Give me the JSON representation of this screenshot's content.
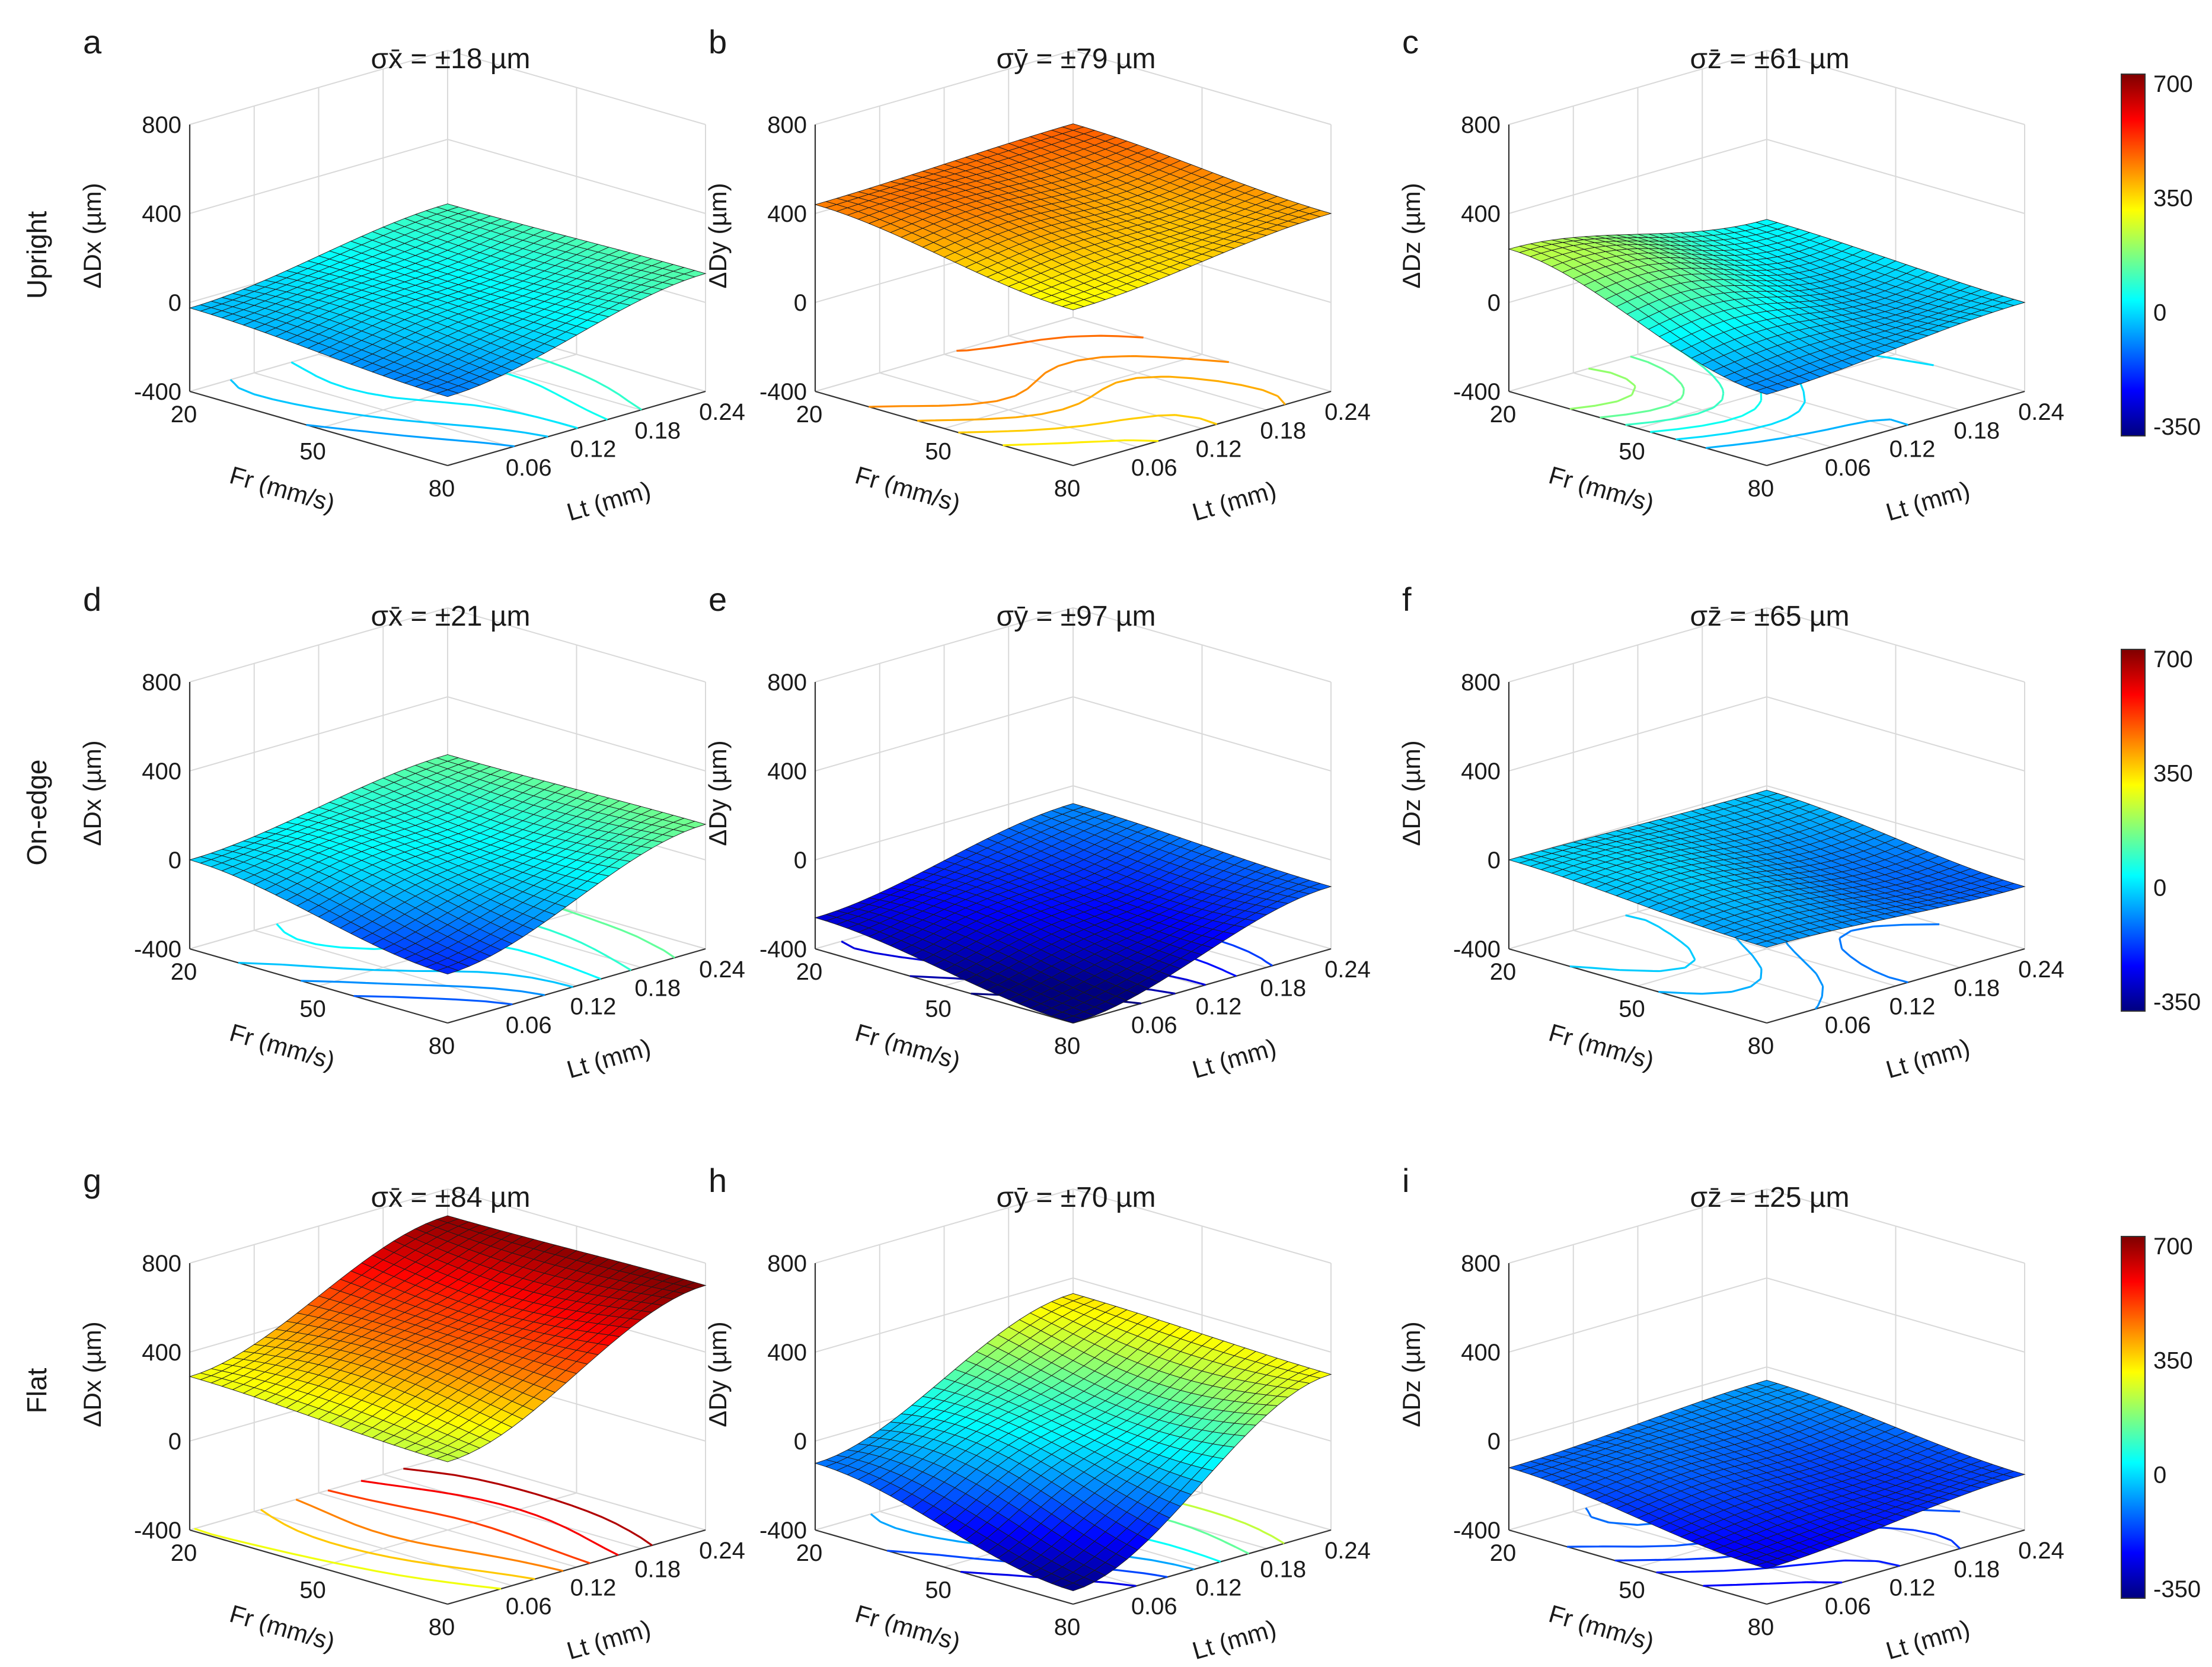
{
  "colormap": {
    "stops": [
      "#00007f",
      "#0000ff",
      "#007fff",
      "#00ffff",
      "#7fff7f",
      "#ffff00",
      "#ff7f00",
      "#ff0000",
      "#7f0000"
    ]
  },
  "row_labels": [
    "Upright",
    "On-edge",
    "Flat"
  ],
  "colorbars": [
    {
      "ticks": [
        "700",
        "350",
        "0",
        "-350"
      ]
    },
    {
      "ticks": [
        "700",
        "350",
        "0",
        "-350"
      ]
    },
    {
      "ticks": [
        "700",
        "350",
        "0",
        "-350"
      ]
    }
  ],
  "chart_data": [
    {
      "type": "surface",
      "panel": "a",
      "row": "Upright",
      "title": "σx̄ = ±18 µm",
      "xlabel": "Fr (mm/s)",
      "ylabel": "Lt (mm)",
      "zlabel": "ΔDx (µm)",
      "x_ticks": [
        "20",
        "50",
        "80"
      ],
      "y_ticks": [
        "0.06",
        "0.12",
        "0.18",
        "0.24"
      ],
      "z_ticks": [
        "-400",
        "0",
        "400",
        "800"
      ],
      "zlim": [
        -400,
        800
      ],
      "clim": [
        -350,
        700
      ],
      "corner_values": {
        "fr20_lt006": -25,
        "fr80_lt006": -90,
        "fr20_lt024": 110,
        "fr80_lt024": 130
      },
      "surface_range": [
        -90,
        170
      ]
    },
    {
      "type": "surface",
      "panel": "b",
      "row": "Upright",
      "title": "σȳ = ±79 µm",
      "xlabel": "Fr (mm/s)",
      "ylabel": "Lt (mm)",
      "zlabel": "ΔDy (µm)",
      "x_ticks": [
        "20",
        "50",
        "80"
      ],
      "y_ticks": [
        "0.06",
        "0.12",
        "0.18",
        "0.24"
      ],
      "z_ticks": [
        "-400",
        "0",
        "400",
        "800"
      ],
      "zlim": [
        -400,
        800
      ],
      "clim": [
        -350,
        700
      ],
      "corner_values": {
        "fr20_lt006": 440,
        "fr80_lt006": 300,
        "fr20_lt024": 470,
        "fr80_lt024": 400
      },
      "surface_range": [
        260,
        490
      ]
    },
    {
      "type": "surface",
      "panel": "c",
      "row": "Upright",
      "title": "σz̄ = ±61 µm",
      "xlabel": "Fr (mm/s)",
      "ylabel": "Lt (mm)",
      "zlabel": "ΔDz (µm)",
      "x_ticks": [
        "20",
        "50",
        "80"
      ],
      "y_ticks": [
        "0.06",
        "0.12",
        "0.18",
        "0.24"
      ],
      "z_ticks": [
        "-400",
        "0",
        "400",
        "800"
      ],
      "zlim": [
        -400,
        800
      ],
      "clim": [
        -350,
        700
      ],
      "corner_values": {
        "fr20_lt006": 240,
        "fr80_lt006": -80,
        "fr20_lt024": 40,
        "fr80_lt024": 0
      },
      "surface_range": [
        -80,
        240
      ]
    },
    {
      "type": "surface",
      "panel": "d",
      "row": "On-edge",
      "title": "σx̄ = ±21 µm",
      "xlabel": "Fr (mm/s)",
      "ylabel": "Lt (mm)",
      "zlabel": "ΔDx (µm)",
      "x_ticks": [
        "20",
        "50",
        "80"
      ],
      "y_ticks": [
        "0.06",
        "0.12",
        "0.18",
        "0.24"
      ],
      "z_ticks": [
        "-400",
        "0",
        "400",
        "800"
      ],
      "zlim": [
        -400,
        800
      ],
      "clim": [
        -350,
        700
      ],
      "corner_values": {
        "fr20_lt006": 0,
        "fr80_lt006": -180,
        "fr20_lt024": 140,
        "fr80_lt024": 160
      },
      "surface_range": [
        -180,
        200
      ]
    },
    {
      "type": "surface",
      "panel": "e",
      "row": "On-edge",
      "title": "σȳ = ±97 µm",
      "xlabel": "Fr (mm/s)",
      "ylabel": "Lt (mm)",
      "zlabel": "ΔDy (µm)",
      "x_ticks": [
        "20",
        "50",
        "80"
      ],
      "y_ticks": [
        "0.06",
        "0.12",
        "0.18",
        "0.24"
      ],
      "z_ticks": [
        "-400",
        "0",
        "400",
        "800"
      ],
      "zlim": [
        -400,
        800
      ],
      "clim": [
        -350,
        700
      ],
      "corner_values": {
        "fr20_lt006": -260,
        "fr80_lt006": -400,
        "fr20_lt024": -80,
        "fr80_lt024": -120
      },
      "surface_range": [
        -400,
        -60
      ]
    },
    {
      "type": "surface",
      "panel": "f",
      "row": "On-edge",
      "title": "σz̄ = ±65 µm",
      "xlabel": "Fr (mm/s)",
      "ylabel": "Lt (mm)",
      "zlabel": "ΔDz (µm)",
      "x_ticks": [
        "20",
        "50",
        "80"
      ],
      "y_ticks": [
        "0.06",
        "0.12",
        "0.18",
        "0.24"
      ],
      "z_ticks": [
        "-400",
        "0",
        "400",
        "800"
      ],
      "zlim": [
        -400,
        800
      ],
      "clim": [
        -350,
        700
      ],
      "corner_values": {
        "fr20_lt006": 0,
        "fr80_lt006": -60,
        "fr20_lt024": -20,
        "fr80_lt024": -120
      },
      "surface_range": [
        -180,
        20
      ]
    },
    {
      "type": "surface",
      "panel": "g",
      "row": "Flat",
      "title": "σx̄ = ±84 µm",
      "xlabel": "Fr (mm/s)",
      "ylabel": "Lt (mm)",
      "zlabel": "ΔDx (µm)",
      "x_ticks": [
        "20",
        "50",
        "80"
      ],
      "y_ticks": [
        "0.06",
        "0.12",
        "0.18",
        "0.24"
      ],
      "z_ticks": [
        "-400",
        "0",
        "400",
        "800"
      ],
      "zlim": [
        -400,
        800
      ],
      "clim": [
        -350,
        700
      ],
      "corner_values": {
        "fr20_lt006": 290,
        "fr80_lt006": 240,
        "fr20_lt024": 680,
        "fr80_lt024": 700
      },
      "surface_range": [
        220,
        720
      ]
    },
    {
      "type": "surface",
      "panel": "h",
      "row": "Flat",
      "title": "σȳ = ±70 µm",
      "xlabel": "Fr (mm/s)",
      "ylabel": "Lt (mm)",
      "zlabel": "ΔDy (µm)",
      "x_ticks": [
        "20",
        "50",
        "80"
      ],
      "y_ticks": [
        "0.06",
        "0.12",
        "0.18",
        "0.24"
      ],
      "z_ticks": [
        "-400",
        "0",
        "400",
        "800"
      ],
      "zlim": [
        -400,
        800
      ],
      "clim": [
        -350,
        700
      ],
      "corner_values": {
        "fr20_lt006": -100,
        "fr80_lt006": -340,
        "fr20_lt024": 330,
        "fr80_lt024": 300
      },
      "surface_range": [
        -340,
        340
      ]
    },
    {
      "type": "surface",
      "panel": "i",
      "row": "Flat",
      "title": "σz̄ = ±25 µm",
      "xlabel": "Fr (mm/s)",
      "ylabel": "Lt (mm)",
      "zlabel": "ΔDz (µm)",
      "x_ticks": [
        "20",
        "50",
        "80"
      ],
      "y_ticks": [
        "0.06",
        "0.12",
        "0.18",
        "0.24"
      ],
      "z_ticks": [
        "-400",
        "0",
        "400",
        "800"
      ],
      "zlim": [
        -400,
        800
      ],
      "clim": [
        -350,
        700
      ],
      "corner_values": {
        "fr20_lt006": -120,
        "fr80_lt006": -240,
        "fr20_lt024": -60,
        "fr80_lt024": -150
      },
      "surface_range": [
        -250,
        -50
      ]
    }
  ]
}
